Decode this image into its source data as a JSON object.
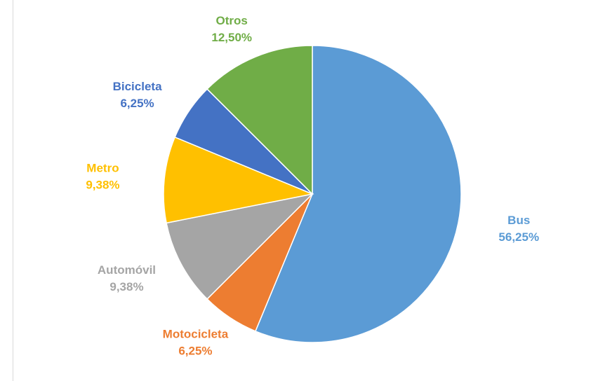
{
  "chart_data": {
    "type": "pie",
    "categories": [
      "Bus",
      "Motocicleta",
      "Automóvil",
      "Metro",
      "Bicicleta",
      "Otros"
    ],
    "values": [
      56.25,
      6.25,
      9.38,
      9.38,
      6.25,
      12.5
    ],
    "value_labels": [
      "56,25%",
      "6,25%",
      "9,38%",
      "9,38%",
      "6,25%",
      "12,50%"
    ],
    "colors": [
      "#5b9bd5",
      "#ed7d31",
      "#a5a5a5",
      "#ffc000",
      "#4472c4",
      "#70ad47"
    ]
  }
}
